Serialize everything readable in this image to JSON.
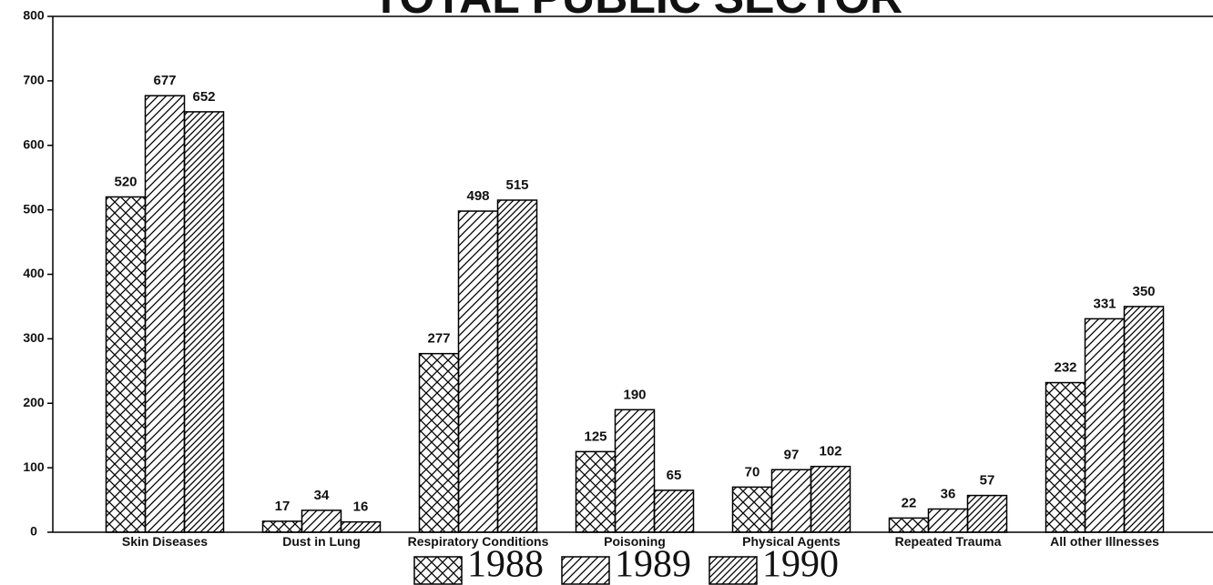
{
  "chart_data": {
    "type": "bar",
    "title": "TOTAL PUBLIC SECTOR",
    "categories": [
      "Skin Diseases",
      "Dust in Lung",
      "Respiratory Conditions",
      "Poisoning",
      "Physical Agents",
      "Repeated Trauma",
      "All other Illnesses"
    ],
    "series": [
      {
        "name": "1988",
        "color": "#000000",
        "hatch": "cross",
        "values": [
          520,
          17,
          277,
          125,
          70,
          22,
          232
        ]
      },
      {
        "name": "1989",
        "color": "#000000",
        "hatch": "diagonal",
        "values": [
          677,
          34,
          498,
          190,
          97,
          36,
          331
        ]
      },
      {
        "name": "1990",
        "color": "#000000",
        "hatch": "dense-diagonal",
        "values": [
          652,
          16,
          515,
          65,
          102,
          57,
          350
        ]
      }
    ],
    "ylim": [
      0,
      800
    ],
    "yticks": [
      0,
      100,
      200,
      300,
      400,
      500,
      600,
      700,
      800
    ],
    "legend": "bottom"
  }
}
